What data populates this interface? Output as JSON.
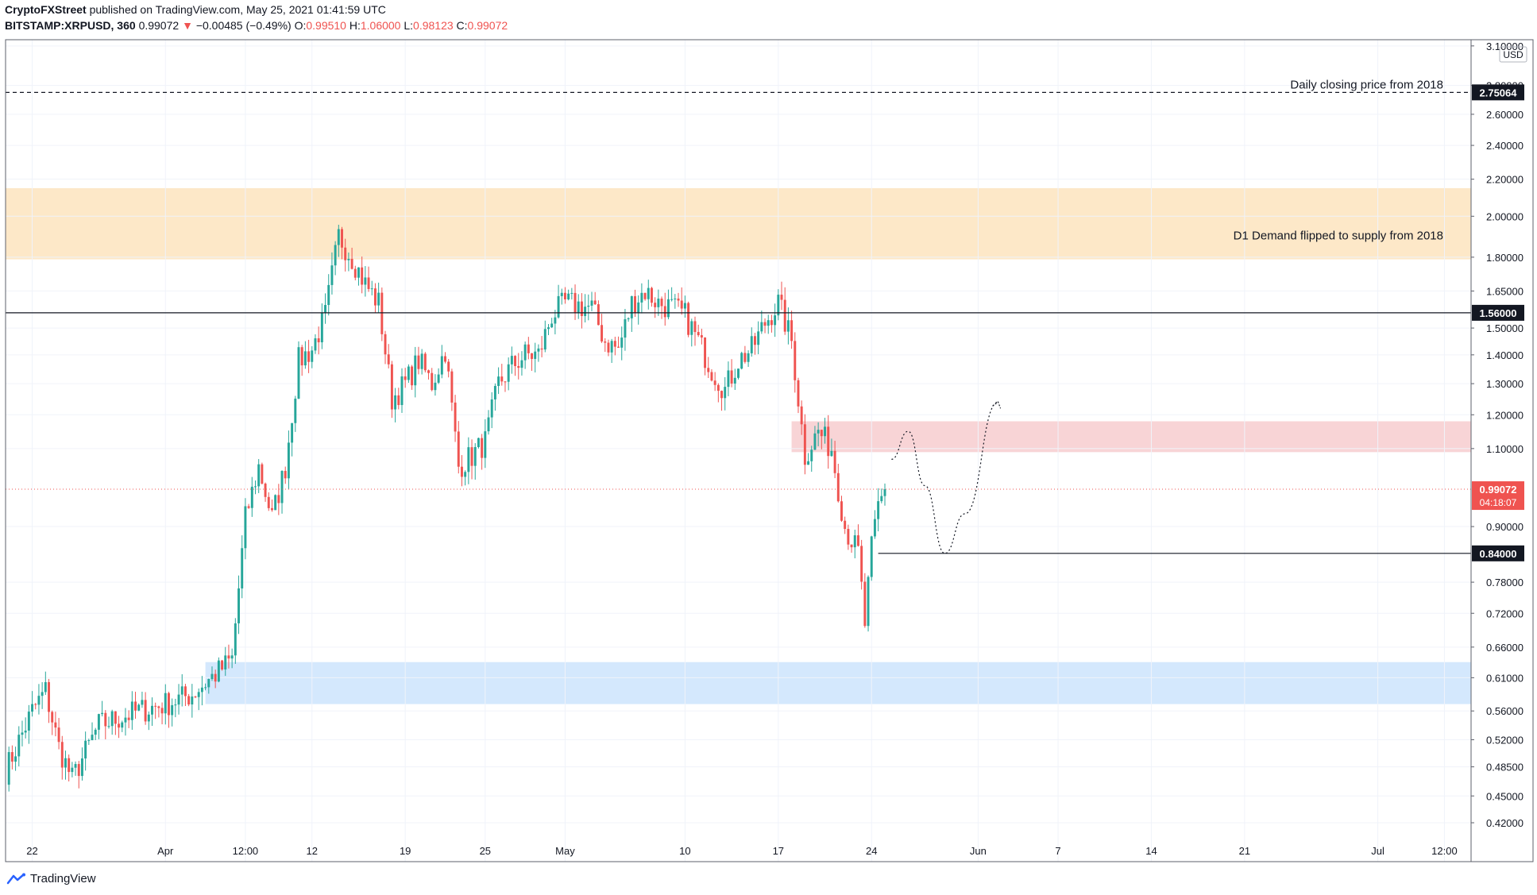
{
  "header": {
    "author": "CryptoFXStreet",
    "published_text": "published on TradingView.com, May 25, 2021 01:41:59 UTC",
    "symbol": "BITSTAMP:XRPUSD, 360",
    "last_price": "0.99072",
    "change_arrow": "▼",
    "change": "−0.00485 (−0.49%)",
    "o_label": "O:",
    "o_value": "0.99510",
    "h_label": "H:",
    "h_value": "1.06000",
    "l_label": "L:",
    "l_value": "0.98123",
    "c_label": "C:",
    "c_value": "0.99072"
  },
  "footer": {
    "brand": "TradingView"
  },
  "chart_data": {
    "type": "candlestick",
    "currency_label": "USD",
    "y_scale": "log",
    "ylim": [
      0.38,
      3.15
    ],
    "colors": {
      "up": "#26a69a",
      "down": "#ef5350"
    },
    "y_ticks": [
      "3.10000",
      "2.80000",
      "2.60000",
      "2.40000",
      "2.20000",
      "2.00000",
      "1.80000",
      "1.65000",
      "1.50000",
      "1.40000",
      "1.30000",
      "1.20000",
      "1.10000",
      "0.90000",
      "0.78000",
      "0.72000",
      "0.66000",
      "0.61000",
      "0.56000",
      "0.52000",
      "0.48500",
      "0.45000",
      "0.42000"
    ],
    "x_ticks": [
      {
        "date": "2021-03-22",
        "label": "22"
      },
      {
        "date": "2021-04-01",
        "label": "Apr"
      },
      {
        "date": "2021-04-07",
        "label": "12:00"
      },
      {
        "date": "2021-04-12",
        "label": "12"
      },
      {
        "date": "2021-04-19",
        "label": "19"
      },
      {
        "date": "2021-04-25",
        "label": "25"
      },
      {
        "date": "2021-05-01",
        "label": "May"
      },
      {
        "date": "2021-05-10",
        "label": "10"
      },
      {
        "date": "2021-05-17",
        "label": "17"
      },
      {
        "date": "2021-05-24",
        "label": "24"
      },
      {
        "date": "2021-06-01",
        "label": "Jun"
      },
      {
        "date": "2021-06-07",
        "label": "7"
      },
      {
        "date": "2021-06-14",
        "label": "14"
      },
      {
        "date": "2021-06-21",
        "label": "21"
      },
      {
        "date": "2021-07-01",
        "label": "Jul"
      },
      {
        "date": "2021-07-06",
        "label": "12:00"
      }
    ],
    "x_range": [
      "2021-03-20",
      "2021-07-08"
    ],
    "horizontal_lines": [
      {
        "price": 2.75064,
        "style": "dashed",
        "label": "2.75064",
        "annotation": "Daily closing price from 2018"
      },
      {
        "price": 1.56,
        "style": "solid",
        "label": "1.56000"
      },
      {
        "price": 0.84,
        "style": "solid",
        "start_date": "2021-05-24T12:00",
        "label": "0.84000"
      },
      {
        "price": 0.99072,
        "style": "dotted-red",
        "label": "0.99072",
        "countdown": "04:18:07"
      }
    ],
    "zones": [
      {
        "name": "supply",
        "from": 1.79,
        "to": 2.15,
        "start_date": "2021-03-20",
        "color": "#fde8c8",
        "annotation": "D1 Demand flipped to supply from 2018"
      },
      {
        "name": "resistance",
        "from": 1.09,
        "to": 1.18,
        "start_date": "2021-05-18",
        "color": "#f8d4d6"
      },
      {
        "name": "demand",
        "from": 0.57,
        "to": 0.635,
        "start_date": "2021-04-04",
        "color": "#d4e8fd"
      }
    ],
    "projection": [
      [
        "2021-05-25T12:00",
        1.07
      ],
      [
        "2021-05-26T18:00",
        1.15
      ],
      [
        "2021-05-28T00:00",
        1.0
      ],
      [
        "2021-05-29T12:00",
        0.84
      ],
      [
        "2021-05-31T00:00",
        0.93
      ],
      [
        "2021-06-02T12:00",
        1.24
      ]
    ],
    "anchors": [
      [
        "2021-03-20",
        0.48
      ],
      [
        "2021-03-22",
        0.56
      ],
      [
        "2021-03-23",
        0.59
      ],
      [
        "2021-03-24",
        0.51
      ],
      [
        "2021-03-25",
        0.47
      ],
      [
        "2021-03-27",
        0.54
      ],
      [
        "2021-03-30",
        0.56
      ],
      [
        "2021-04-01",
        0.57
      ],
      [
        "2021-04-03",
        0.585
      ],
      [
        "2021-04-05",
        0.62
      ],
      [
        "2021-04-06",
        0.64
      ],
      [
        "2021-04-07",
        0.92
      ],
      [
        "2021-04-08",
        1.05
      ],
      [
        "2021-04-09",
        0.92
      ],
      [
        "2021-04-10",
        1.05
      ],
      [
        "2021-04-11",
        1.38
      ],
      [
        "2021-04-12",
        1.42
      ],
      [
        "2021-04-13",
        1.55
      ],
      [
        "2021-04-14",
        1.9
      ],
      [
        "2021-04-15",
        1.8
      ],
      [
        "2021-04-16",
        1.68
      ],
      [
        "2021-04-17",
        1.6
      ],
      [
        "2021-04-18",
        1.25
      ],
      [
        "2021-04-19",
        1.3
      ],
      [
        "2021-04-20",
        1.38
      ],
      [
        "2021-04-21",
        1.3
      ],
      [
        "2021-04-22",
        1.42
      ],
      [
        "2021-04-23",
        1.05
      ],
      [
        "2021-04-24",
        1.08
      ],
      [
        "2021-04-25",
        1.12
      ],
      [
        "2021-04-26",
        1.3
      ],
      [
        "2021-04-27",
        1.36
      ],
      [
        "2021-04-28",
        1.4
      ],
      [
        "2021-04-29",
        1.4
      ],
      [
        "2021-04-30",
        1.55
      ],
      [
        "2021-05-01",
        1.6
      ],
      [
        "2021-05-03",
        1.58
      ],
      [
        "2021-05-04",
        1.45
      ],
      [
        "2021-05-05",
        1.42
      ],
      [
        "2021-05-06",
        1.6
      ],
      [
        "2021-05-07",
        1.65
      ],
      [
        "2021-05-08",
        1.6
      ],
      [
        "2021-05-09",
        1.58
      ],
      [
        "2021-05-10",
        1.55
      ],
      [
        "2021-05-11",
        1.45
      ],
      [
        "2021-05-12",
        1.35
      ],
      [
        "2021-05-13",
        1.28
      ],
      [
        "2021-05-14",
        1.38
      ],
      [
        "2021-05-15",
        1.42
      ],
      [
        "2021-05-16",
        1.52
      ],
      [
        "2021-05-17",
        1.6
      ],
      [
        "2021-05-18",
        1.45
      ],
      [
        "2021-05-19",
        1.08
      ],
      [
        "2021-05-20",
        1.15
      ],
      [
        "2021-05-21",
        1.1
      ],
      [
        "2021-05-22",
        0.9
      ],
      [
        "2021-05-23",
        0.84
      ],
      [
        "2021-05-23T12:00",
        0.7
      ],
      [
        "2021-05-24",
        0.85
      ],
      [
        "2021-05-24T12:00",
        0.95
      ],
      [
        "2021-05-25T01:00",
        0.99072
      ]
    ]
  }
}
